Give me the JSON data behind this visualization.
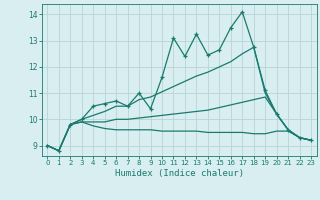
{
  "x": [
    0,
    1,
    2,
    3,
    4,
    5,
    6,
    7,
    8,
    9,
    10,
    11,
    12,
    13,
    14,
    15,
    16,
    17,
    18,
    19,
    20,
    21,
    22,
    23
  ],
  "line_zigzag": [
    9.0,
    8.8,
    9.8,
    10.0,
    10.5,
    10.6,
    10.7,
    10.5,
    11.0,
    10.4,
    11.6,
    13.1,
    12.4,
    13.25,
    12.45,
    12.65,
    13.5,
    14.1,
    12.75,
    11.1,
    10.2,
    9.6,
    9.3,
    9.2
  ],
  "line_upper": [
    9.0,
    8.8,
    9.8,
    10.0,
    10.15,
    10.3,
    10.5,
    10.5,
    10.75,
    10.85,
    11.05,
    11.25,
    11.45,
    11.65,
    11.8,
    12.0,
    12.2,
    12.5,
    12.75,
    11.0,
    10.2,
    9.6,
    9.3,
    9.2
  ],
  "line_lower": [
    9.0,
    8.8,
    9.8,
    9.9,
    9.9,
    9.9,
    10.0,
    10.0,
    10.05,
    10.1,
    10.15,
    10.2,
    10.25,
    10.3,
    10.35,
    10.45,
    10.55,
    10.65,
    10.75,
    10.85,
    10.2,
    9.6,
    9.3,
    9.2
  ],
  "line_bottom": [
    9.0,
    8.8,
    9.8,
    9.9,
    9.75,
    9.65,
    9.6,
    9.6,
    9.6,
    9.6,
    9.55,
    9.55,
    9.55,
    9.55,
    9.5,
    9.5,
    9.5,
    9.5,
    9.45,
    9.45,
    9.55,
    9.55,
    9.3,
    9.2
  ],
  "color": "#1a7a6e",
  "bg_color": "#d8eef0",
  "grid_color": "#b8d4d8",
  "xlabel": "Humidex (Indice chaleur)",
  "ylim": [
    8.6,
    14.4
  ],
  "xlim": [
    -0.5,
    23.5
  ],
  "yticks": [
    9,
    10,
    11,
    12,
    13,
    14
  ],
  "xticks": [
    0,
    1,
    2,
    3,
    4,
    5,
    6,
    7,
    8,
    9,
    10,
    11,
    12,
    13,
    14,
    15,
    16,
    17,
    18,
    19,
    20,
    21,
    22,
    23
  ]
}
